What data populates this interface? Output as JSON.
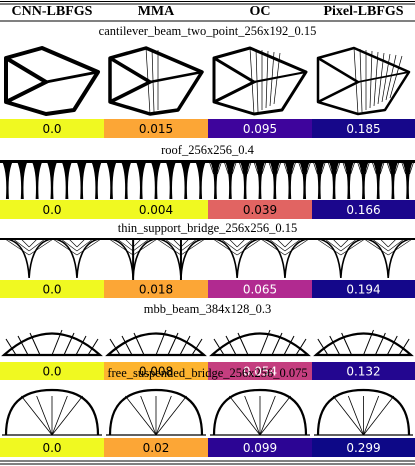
{
  "header": {
    "columns": [
      "CNN-LBFGS",
      "MMA",
      "OC",
      "Pixel-LBFGS"
    ]
  },
  "rows": [
    {
      "title": "cantilever_beam_two_point_256x192_0.15",
      "values": [
        "0.0",
        "0.015",
        "0.095",
        "0.185"
      ],
      "colors": [
        "#f0f921",
        "#fca636",
        "#3e049c",
        "#16078a"
      ]
    },
    {
      "title": "roof_256x256_0.4",
      "values": [
        "0.0",
        "0.004",
        "0.039",
        "0.166"
      ],
      "colors": [
        "#f0f921",
        "#f0f921",
        "#e16462",
        "#1b068c"
      ]
    },
    {
      "title": "thin_support_bridge_256x256_0.15",
      "values": [
        "0.0",
        "0.018",
        "0.065",
        "0.194"
      ],
      "colors": [
        "#f0f921",
        "#fca636",
        "#b12a90",
        "#14078a"
      ]
    },
    {
      "title": "mbb_beam_384x128_0.3",
      "values": [
        "0.0",
        "0.008",
        "0.054",
        "0.132"
      ],
      "colors": [
        "#f0f921",
        "#fdb42f",
        "#c43e7f",
        "#230690"
      ]
    },
    {
      "title": "free_suspended_bridge_256x256_0.075",
      "values": [
        "0.0",
        "0.02",
        "0.099",
        "0.299"
      ],
      "colors": [
        "#f0f921",
        "#fca636",
        "#2c0594",
        "#0d0887"
      ]
    }
  ]
}
